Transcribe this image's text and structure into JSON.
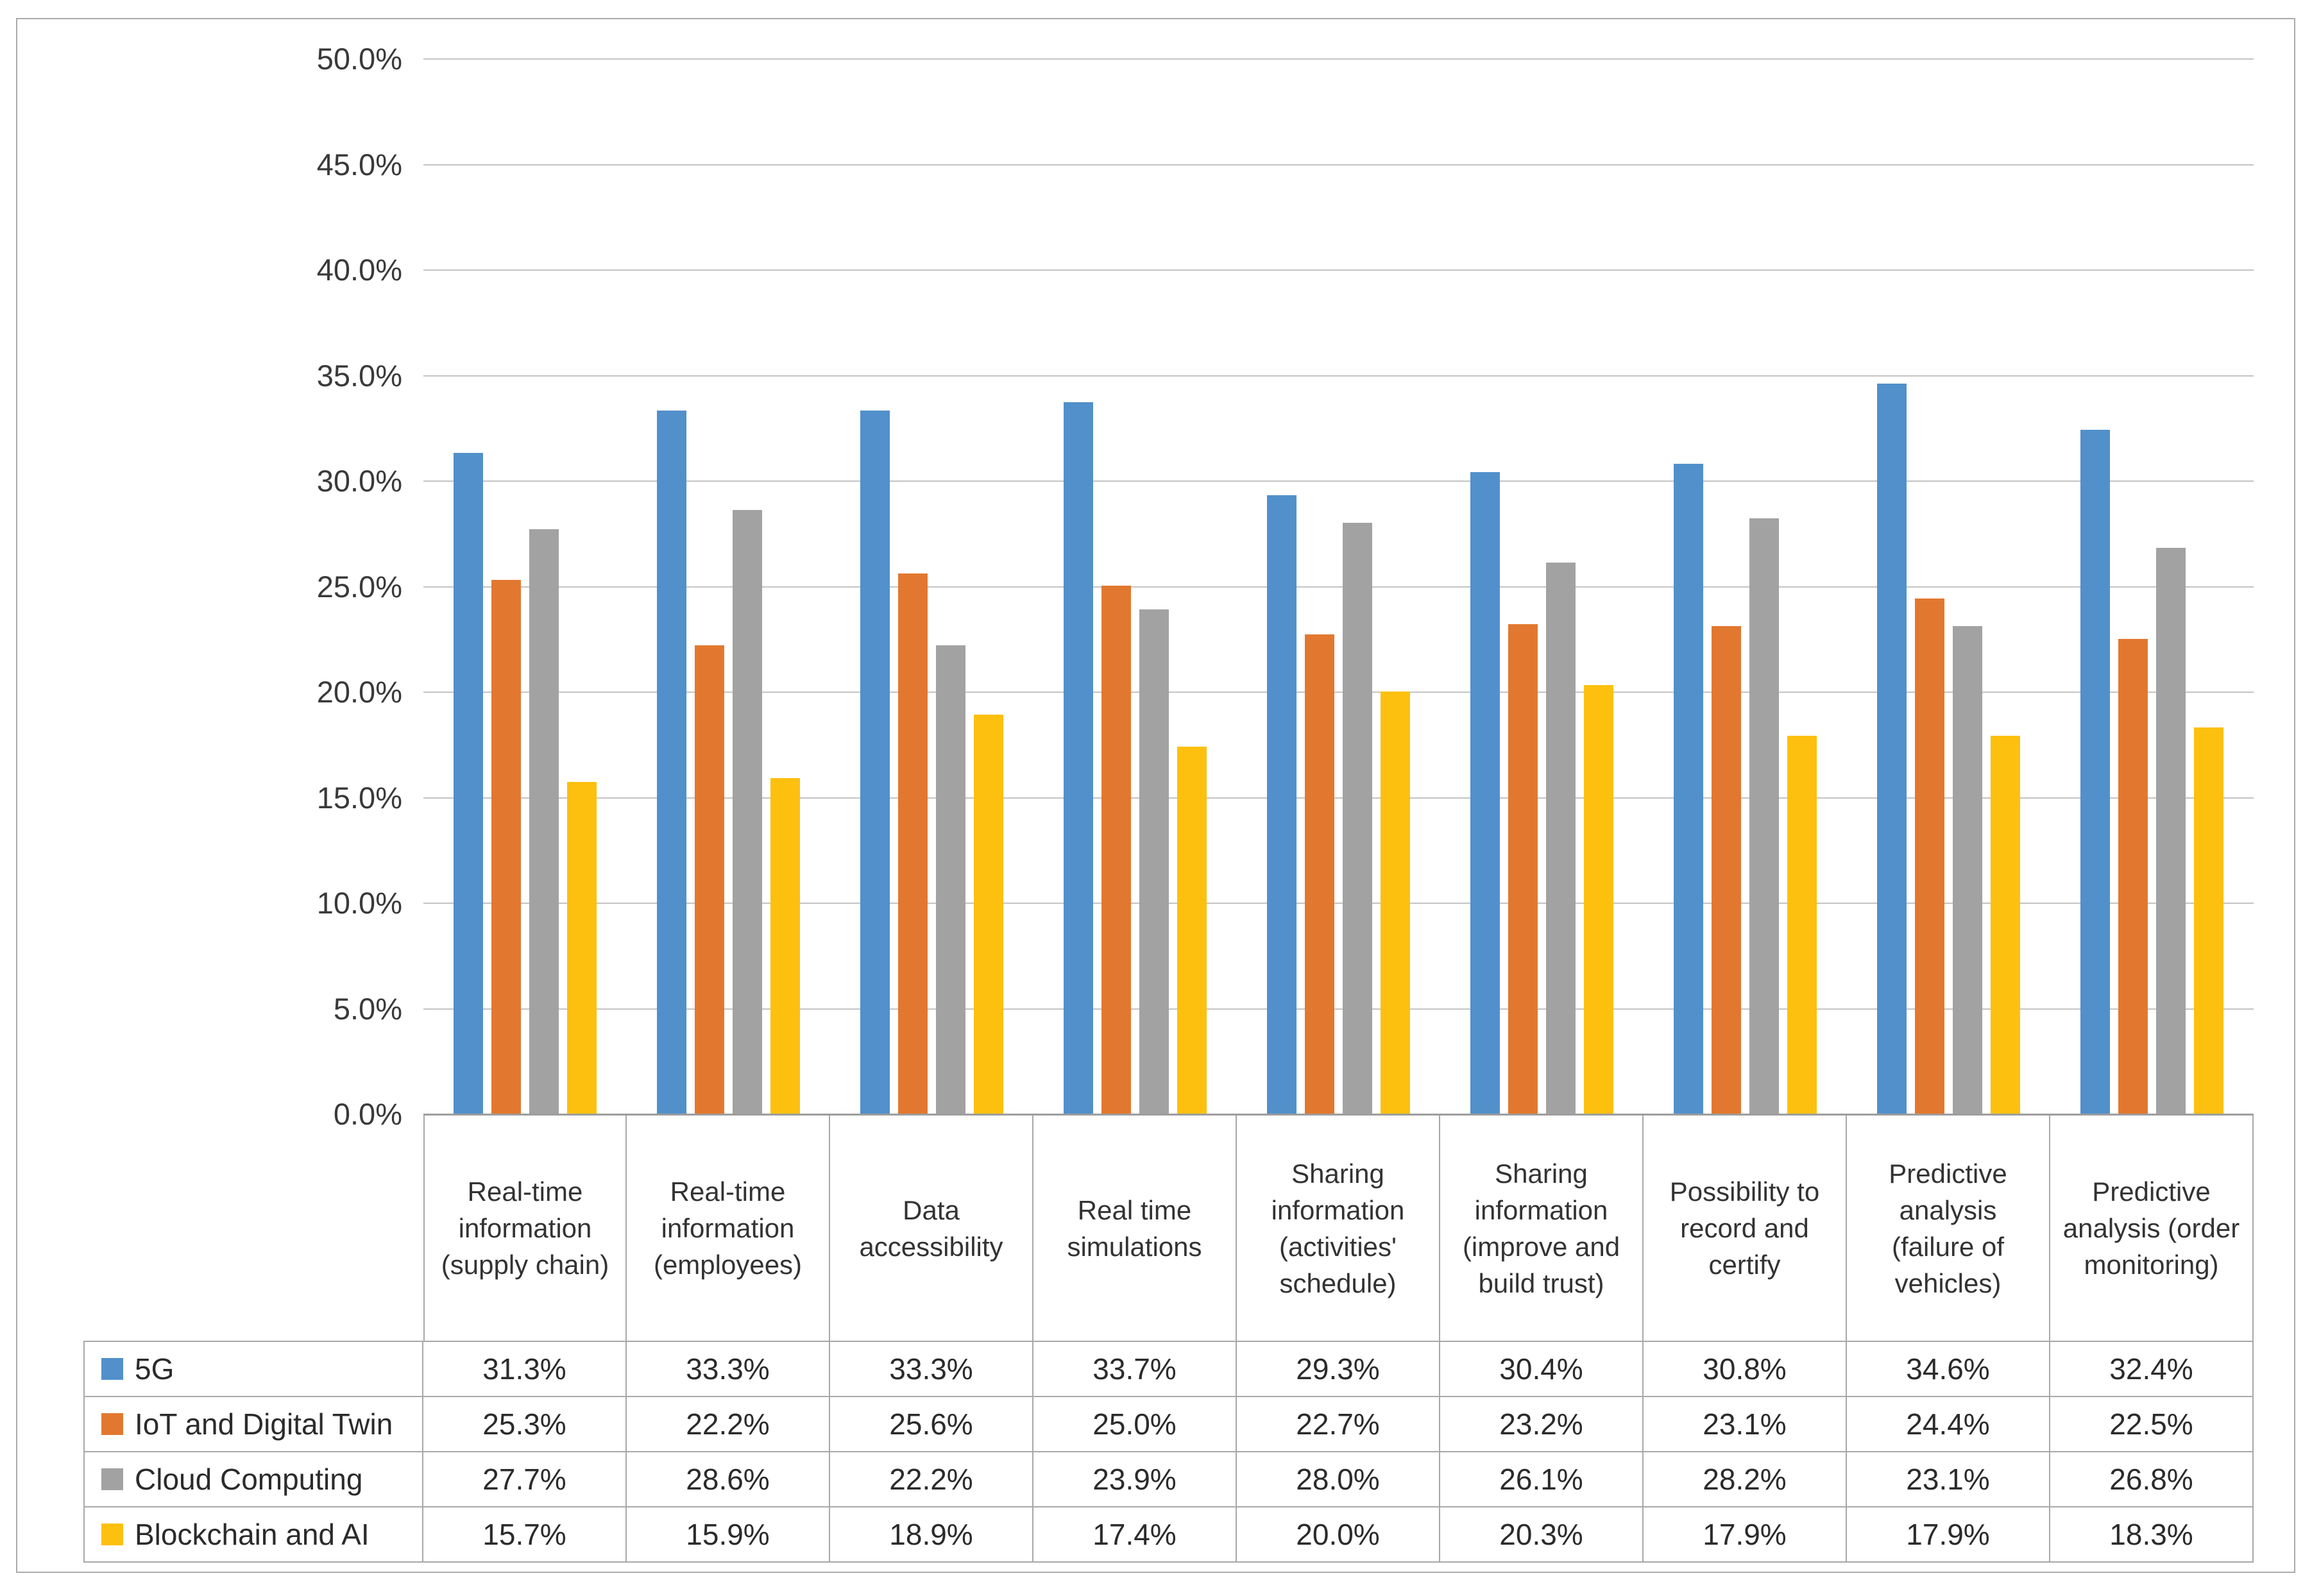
{
  "chart_data": {
    "type": "bar",
    "title": "",
    "xlabel": "",
    "ylabel": "",
    "categories": [
      "Real-time information (supply chain)",
      "Real-time information (employees)",
      "Data accessibility",
      "Real time simulations",
      "Sharing information (activities' schedule)",
      "Sharing information (improve and build trust)",
      "Possibility to record and certify",
      "Predictive analysis (failure of vehicles)",
      "Predictive analysis (order monitoring)"
    ],
    "series": [
      {
        "name": "5G",
        "color": "#5190cb",
        "values": [
          31.3,
          33.3,
          33.3,
          33.7,
          29.3,
          30.4,
          30.8,
          34.6,
          32.4
        ],
        "labels": [
          "31.3%",
          "33.3%",
          "33.3%",
          "33.7%",
          "29.3%",
          "30.4%",
          "30.8%",
          "34.6%",
          "32.4%"
        ]
      },
      {
        "name": "IoT and Digital Twin",
        "color": "#e2782f",
        "values": [
          25.3,
          22.2,
          25.6,
          25.0,
          22.7,
          23.2,
          23.1,
          24.4,
          22.5
        ],
        "labels": [
          "25.3%",
          "22.2%",
          "25.6%",
          "25.0%",
          "22.7%",
          "23.2%",
          "23.1%",
          "24.4%",
          "22.5%"
        ]
      },
      {
        "name": "Cloud Computing",
        "color": "#a2a2a2",
        "values": [
          27.7,
          28.6,
          22.2,
          23.9,
          28.0,
          26.1,
          28.2,
          23.1,
          26.8
        ],
        "labels": [
          "27.7%",
          "28.6%",
          "22.2%",
          "23.9%",
          "28.0%",
          "26.1%",
          "28.2%",
          "23.1%",
          "26.8%"
        ]
      },
      {
        "name": "Blockchain and AI",
        "color": "#fdc00f",
        "values": [
          15.7,
          15.9,
          18.9,
          17.4,
          20.0,
          20.3,
          17.9,
          17.9,
          18.3
        ],
        "labels": [
          "15.7%",
          "15.9%",
          "18.9%",
          "17.4%",
          "20.0%",
          "20.3%",
          "17.9%",
          "17.9%",
          "18.3%"
        ]
      }
    ],
    "y_axis": {
      "min": 0,
      "max": 50,
      "step": 5,
      "tick_labels": [
        "0.0%",
        "5.0%",
        "10.0%",
        "15.0%",
        "20.0%",
        "25.0%",
        "30.0%",
        "35.0%",
        "40.0%",
        "45.0%",
        "50.0%"
      ]
    },
    "grid": true,
    "legend_position": "table-left"
  }
}
